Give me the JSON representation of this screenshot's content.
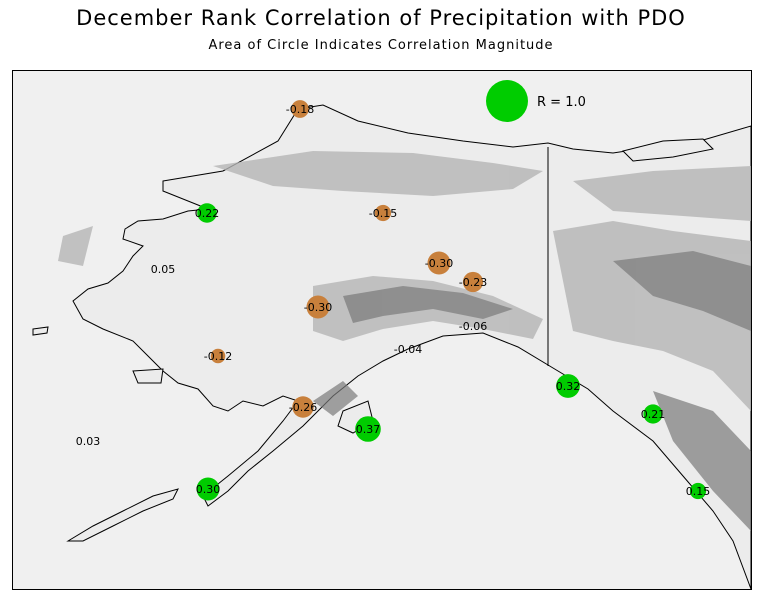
{
  "title": "December Rank Correlation of Precipitation with PDO",
  "subtitle": "Area of Circle Indicates Correlation Magnitude",
  "legend": {
    "label": "R = 1.0",
    "color": "#00cc00"
  },
  "colors": {
    "positive": "#00cc00",
    "negative": "#c8803c"
  },
  "stations": [
    {
      "value": "-0.18",
      "r": -0.18
    },
    {
      "value": "0.22",
      "r": 0.22
    },
    {
      "value": "-0.15",
      "r": -0.15
    },
    {
      "value": "0.05",
      "r": 0.05
    },
    {
      "value": "-0.30",
      "r": -0.3
    },
    {
      "value": "-0.23",
      "r": -0.23
    },
    {
      "value": "-0.30",
      "r": -0.3
    },
    {
      "value": "-0.06",
      "r": -0.06
    },
    {
      "value": "-0.04",
      "r": -0.04
    },
    {
      "value": "-0.12",
      "r": -0.12
    },
    {
      "value": "0.32",
      "r": 0.32
    },
    {
      "value": "-0.26",
      "r": -0.26
    },
    {
      "value": "0.37",
      "r": 0.37
    },
    {
      "value": "0.21",
      "r": 0.21
    },
    {
      "value": "0.03",
      "r": 0.03
    },
    {
      "value": "0.30",
      "r": 0.3
    },
    {
      "value": "0.15",
      "r": 0.15
    }
  ]
}
